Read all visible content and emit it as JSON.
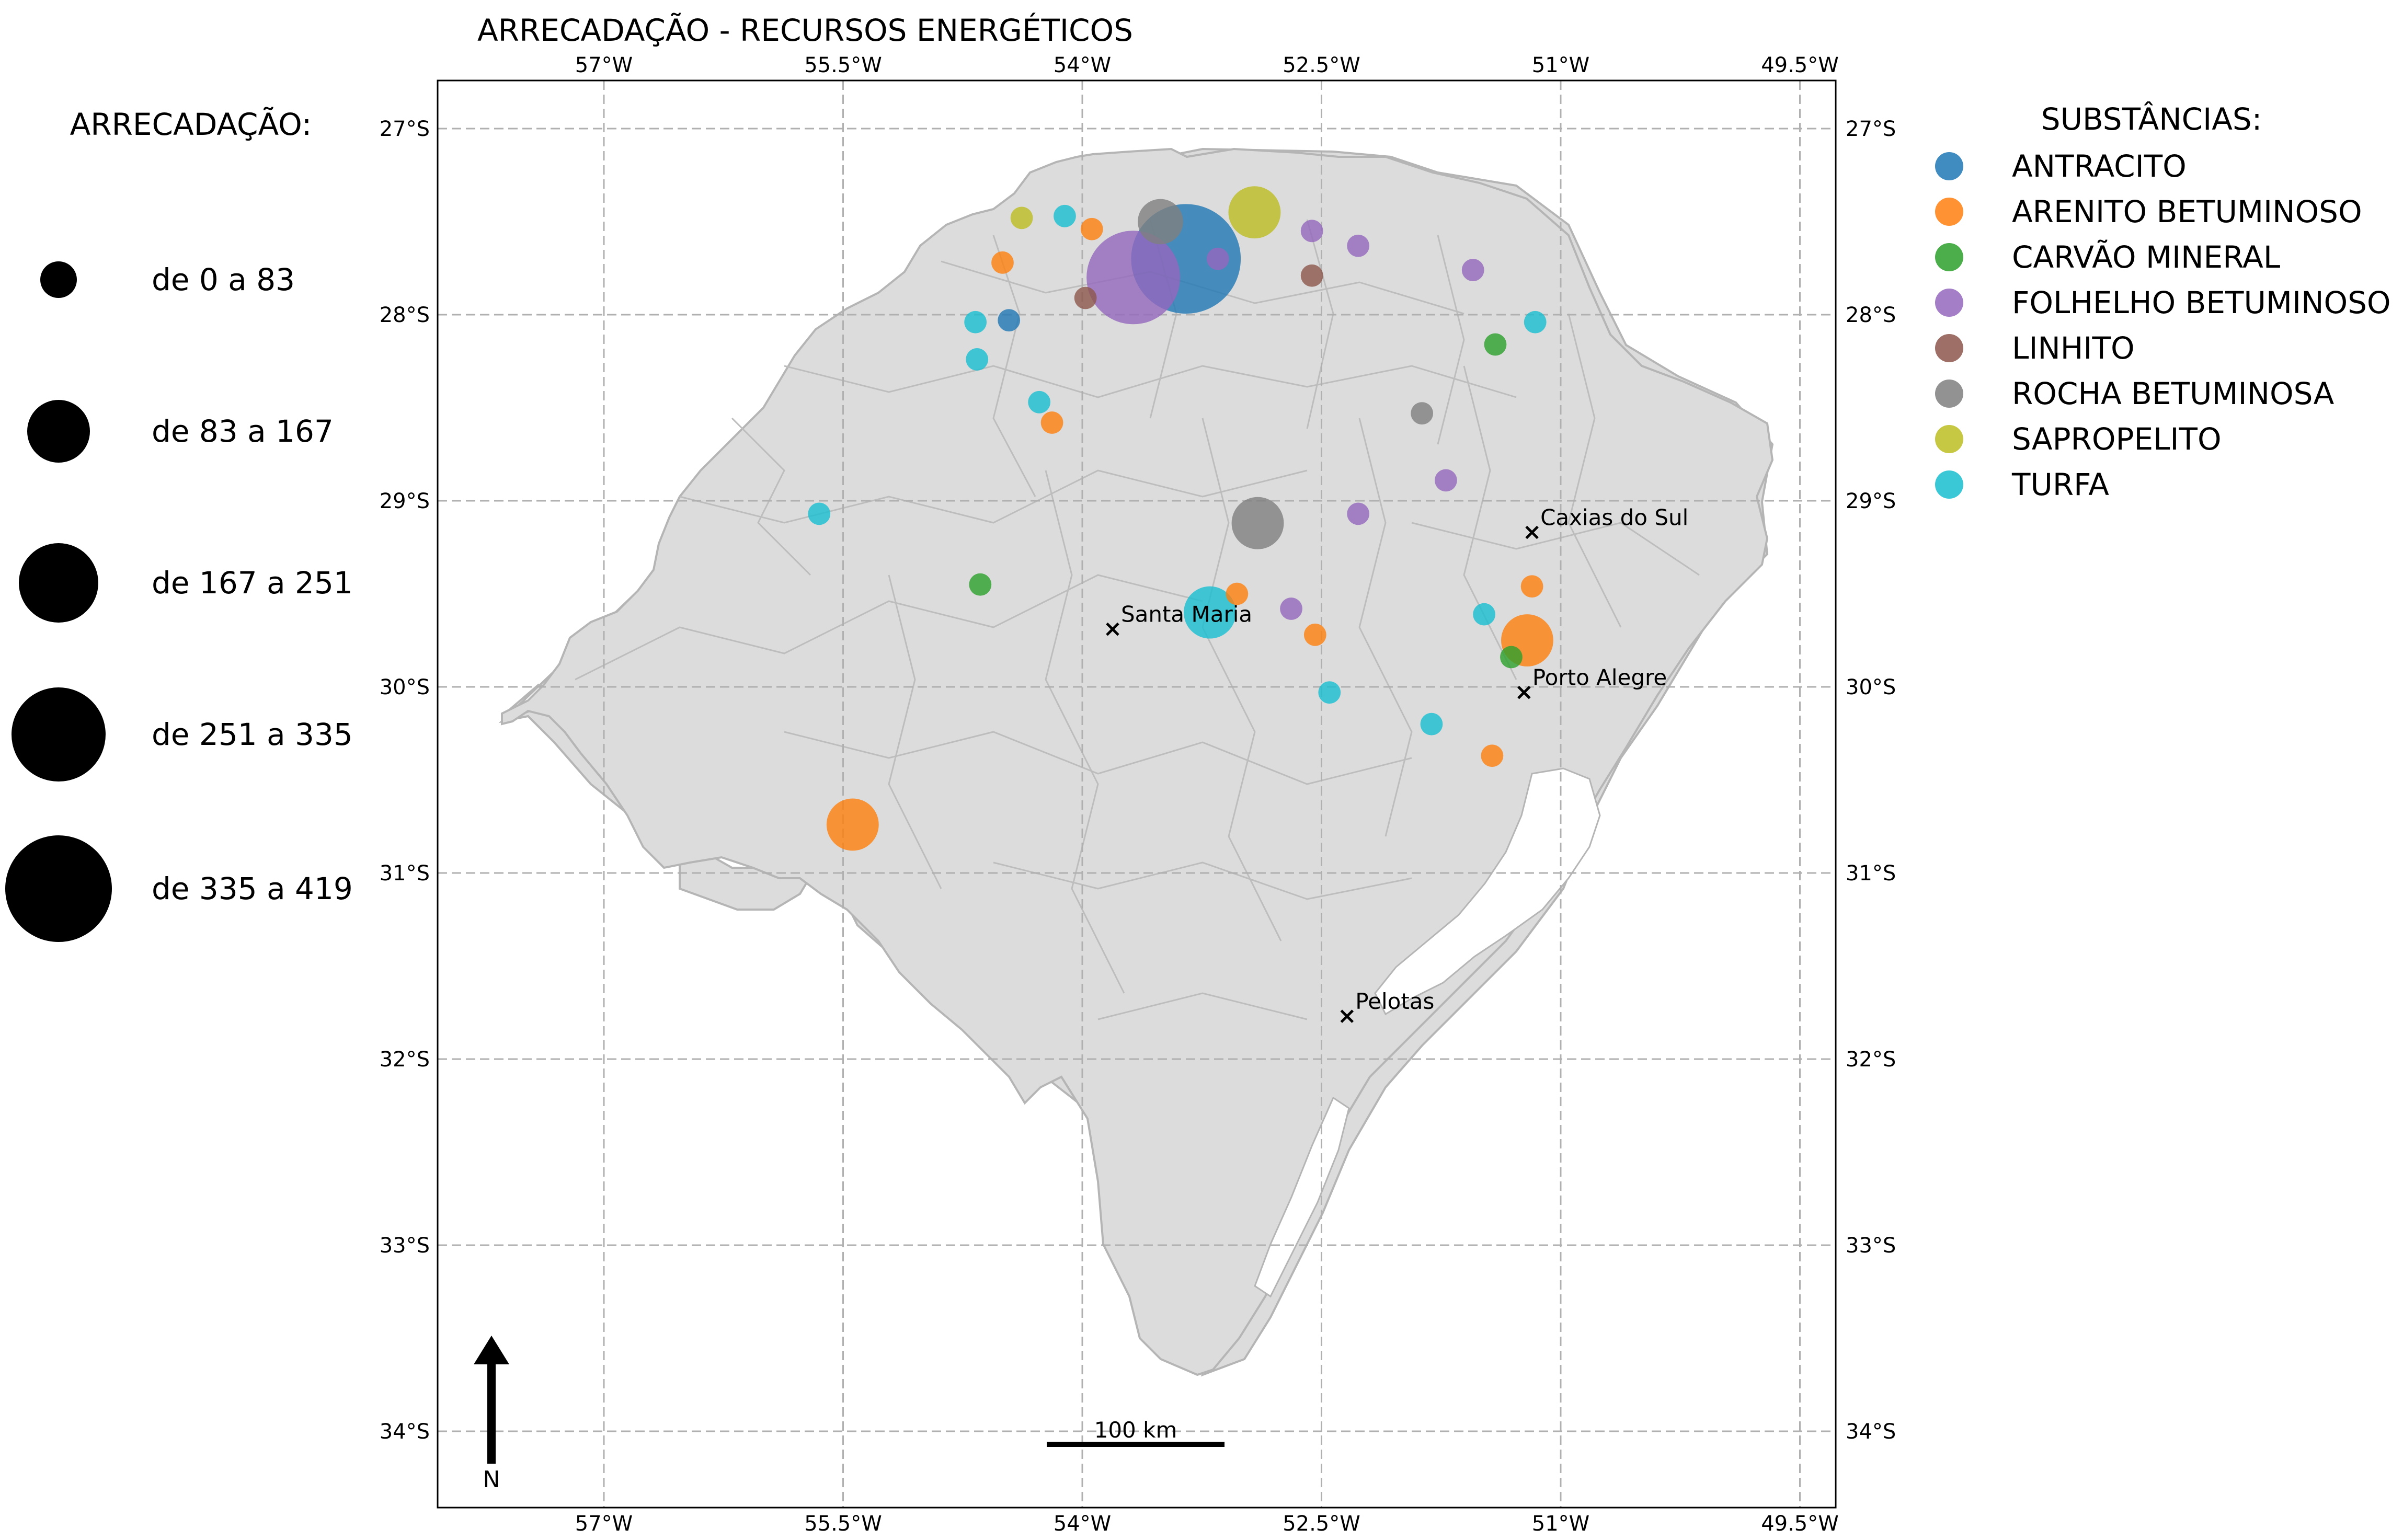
{
  "title": "ARRECADAÇÃO - RECURSOS ENERGÉTICOS",
  "lon_ticks": [
    {
      "value": -57,
      "label": "57°W"
    },
    {
      "value": -55.5,
      "label": "55.5°W"
    },
    {
      "value": -54,
      "label": "54°W"
    },
    {
      "value": -52.5,
      "label": "52.5°W"
    },
    {
      "value": -51,
      "label": "51°W"
    },
    {
      "value": -49.5,
      "label": "49.5°W"
    }
  ],
  "lat_ticks": [
    {
      "value": -27,
      "label": "27°S"
    },
    {
      "value": -28,
      "label": "28°S"
    },
    {
      "value": -29,
      "label": "29°S"
    },
    {
      "value": -30,
      "label": "30°S"
    },
    {
      "value": -31,
      "label": "31°S"
    },
    {
      "value": -32,
      "label": "32°S"
    },
    {
      "value": -33,
      "label": "33°S"
    },
    {
      "value": -34,
      "label": "34°S"
    }
  ],
  "size_legend": {
    "title": "ARRECADAÇÃO:",
    "items": [
      {
        "label": "de 0 a 83",
        "radius": 35
      },
      {
        "label": "de 83 a 167",
        "radius": 60
      },
      {
        "label": "de 167 a 251",
        "radius": 76
      },
      {
        "label": "de 251 a 335",
        "radius": 90
      },
      {
        "label": "de 335 a 419",
        "radius": 102
      }
    ]
  },
  "substance_legend": {
    "title": "SUBSTÂNCIAS:",
    "items": [
      {
        "key": "antracito",
        "label": "ANTRACITO",
        "color": "#1f77b4"
      },
      {
        "key": "arenito",
        "label": "ARENITO BETUMINOSO",
        "color": "#ff7f0e"
      },
      {
        "key": "carvao",
        "label": "CARVÃO MINERAL",
        "color": "#2ca02c"
      },
      {
        "key": "folhelho",
        "label": "FOLHELHO BETUMINOSO",
        "color": "#9467bd"
      },
      {
        "key": "linhito",
        "label": "LINHITO",
        "color": "#8c564b"
      },
      {
        "key": "rocha",
        "label": "ROCHA BETUMINOSA",
        "color": "#7f7f7f"
      },
      {
        "key": "sapropelito",
        "label": "SAPROPELITO",
        "color": "#bcbd22"
      },
      {
        "key": "turfa",
        "label": "TURFA",
        "color": "#17becf"
      }
    ]
  },
  "cities": [
    {
      "name": "Caxias do Sul",
      "lon": -51.18,
      "lat": -29.17
    },
    {
      "name": "Santa Maria",
      "lon": -53.81,
      "lat": -29.69
    },
    {
      "name": "Porto Alegre",
      "lon": -51.23,
      "lat": -30.03
    },
    {
      "name": "Pelotas",
      "lon": -52.34,
      "lat": -31.77
    }
  ],
  "scale_bar": {
    "label": "100 km"
  },
  "north_arrow": {
    "label": "N"
  },
  "points": [
    {
      "sub": "antracito",
      "lon": -53.35,
      "lat": -27.7,
      "size": 400
    },
    {
      "sub": "antracito",
      "lon": -54.46,
      "lat": -28.03,
      "size": 20
    },
    {
      "sub": "folhelho",
      "lon": -53.68,
      "lat": -27.8,
      "size": 330
    },
    {
      "sub": "folhelho",
      "lon": -53.15,
      "lat": -27.7,
      "size": 20
    },
    {
      "sub": "folhelho",
      "lon": -52.56,
      "lat": -27.55,
      "size": 20
    },
    {
      "sub": "folhelho",
      "lon": -52.27,
      "lat": -27.63,
      "size": 20
    },
    {
      "sub": "folhelho",
      "lon": -51.55,
      "lat": -27.76,
      "size": 20
    },
    {
      "sub": "folhelho",
      "lon": -51.72,
      "lat": -28.89,
      "size": 20
    },
    {
      "sub": "folhelho",
      "lon": -52.27,
      "lat": -29.07,
      "size": 20
    },
    {
      "sub": "folhelho",
      "lon": -52.69,
      "lat": -29.58,
      "size": 20
    },
    {
      "sub": "rocha",
      "lon": -53.51,
      "lat": -27.5,
      "size": 120
    },
    {
      "sub": "rocha",
      "lon": -52.9,
      "lat": -29.12,
      "size": 150
    },
    {
      "sub": "rocha",
      "lon": -51.87,
      "lat": -28.53,
      "size": 20
    },
    {
      "sub": "sapropelito",
      "lon": -52.92,
      "lat": -27.45,
      "size": 150
    },
    {
      "sub": "sapropelito",
      "lon": -54.38,
      "lat": -27.48,
      "size": 20
    },
    {
      "sub": "arenito",
      "lon": -54.5,
      "lat": -27.72,
      "size": 20
    },
    {
      "sub": "arenito",
      "lon": -53.94,
      "lat": -27.54,
      "size": 20
    },
    {
      "sub": "arenito",
      "lon": -54.19,
      "lat": -28.58,
      "size": 20
    },
    {
      "sub": "arenito",
      "lon": -55.44,
      "lat": -30.74,
      "size": 150
    },
    {
      "sub": "arenito",
      "lon": -53.03,
      "lat": -29.5,
      "size": 20
    },
    {
      "sub": "arenito",
      "lon": -52.54,
      "lat": -29.72,
      "size": 20
    },
    {
      "sub": "arenito",
      "lon": -51.18,
      "lat": -29.46,
      "size": 20
    },
    {
      "sub": "arenito",
      "lon": -51.21,
      "lat": -29.75,
      "size": 150
    },
    {
      "sub": "arenito",
      "lon": -51.43,
      "lat": -30.37,
      "size": 20
    },
    {
      "sub": "carvao",
      "lon": -51.41,
      "lat": -28.16,
      "size": 20
    },
    {
      "sub": "carvao",
      "lon": -54.64,
      "lat": -29.45,
      "size": 20
    },
    {
      "sub": "carvao",
      "lon": -51.31,
      "lat": -29.84,
      "size": 20
    },
    {
      "sub": "linhito",
      "lon": -53.98,
      "lat": -27.91,
      "size": 20
    },
    {
      "sub": "linhito",
      "lon": -52.56,
      "lat": -27.79,
      "size": 20
    },
    {
      "sub": "turfa",
      "lon": -54.11,
      "lat": -27.47,
      "size": 20
    },
    {
      "sub": "turfa",
      "lon": -54.67,
      "lat": -28.04,
      "size": 20
    },
    {
      "sub": "turfa",
      "lon": -54.66,
      "lat": -28.24,
      "size": 20
    },
    {
      "sub": "turfa",
      "lon": -54.27,
      "lat": -28.47,
      "size": 20
    },
    {
      "sub": "turfa",
      "lon": -55.65,
      "lat": -29.07,
      "size": 20
    },
    {
      "sub": "turfa",
      "lon": -53.2,
      "lat": -29.6,
      "size": 150
    },
    {
      "sub": "turfa",
      "lon": -52.45,
      "lat": -30.03,
      "size": 20
    },
    {
      "sub": "turfa",
      "lon": -51.81,
      "lat": -30.2,
      "size": 20
    },
    {
      "sub": "turfa",
      "lon": -51.48,
      "lat": -29.61,
      "size": 20
    },
    {
      "sub": "turfa",
      "lon": -51.16,
      "lat": -28.04,
      "size": 20
    }
  ]
}
